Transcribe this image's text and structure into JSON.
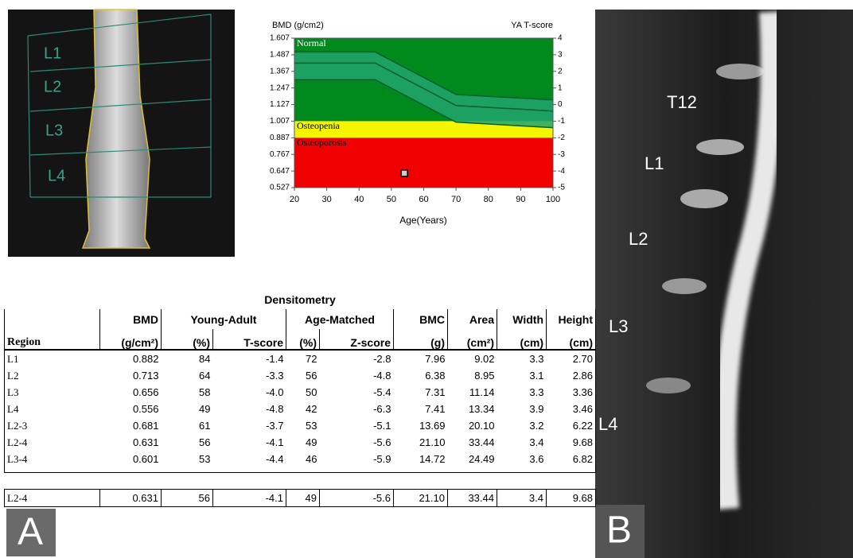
{
  "chart_data": {
    "type": "line",
    "y_label": "BMD (g/cm2)",
    "y2_label": "YA T-score",
    "x_label": "Age(Years)",
    "x": [
      20,
      45,
      70,
      100
    ],
    "series": [
      {
        "color": "#0b5e2c",
        "values": [
          1.507,
          1.507,
          1.2,
          1.16
        ]
      },
      {
        "color": "#0b5e2c",
        "values": [
          1.427,
          1.427,
          1.12,
          1.08
        ]
      },
      {
        "color": "#0b5e2c",
        "values": [
          1.307,
          1.307,
          1.0,
          0.96
        ]
      }
    ],
    "band_color": "#22a56e",
    "zones": [
      {
        "label": "Normal",
        "from": 1.007,
        "to": 1.607,
        "color": "#008a1e"
      },
      {
        "label": "Osteopenia",
        "from": 0.887,
        "to": 1.007,
        "color": "#f5f500"
      },
      {
        "label": "Osteoporosis",
        "from": 0.527,
        "to": 0.887,
        "color": "#f00000"
      }
    ],
    "marker": {
      "x": 54,
      "y": 0.631
    },
    "xlim": [
      20,
      100
    ],
    "xticks": [
      20,
      30,
      40,
      50,
      60,
      70,
      80,
      90,
      100
    ],
    "ylim": [
      0.527,
      1.607
    ],
    "yticks": [
      0.527,
      0.647,
      0.767,
      0.887,
      1.007,
      1.127,
      1.247,
      1.367,
      1.487,
      1.607
    ],
    "y2lim": [
      -5,
      4
    ],
    "y2ticks": [
      -5,
      -4,
      -3,
      -2,
      -1,
      0,
      1,
      2,
      3,
      4
    ]
  },
  "dxa": {
    "labels": [
      "L1",
      "L2",
      "L3",
      "L4"
    ]
  },
  "mri": {
    "labels": [
      "T12",
      "L1",
      "L2",
      "L3",
      "L4"
    ]
  },
  "panels": [
    "A",
    "B"
  ],
  "table": {
    "title": "Densitometry",
    "header_top": [
      "BMD",
      "Young-Adult",
      "Age-Matched",
      "BMC",
      "Area",
      "Width",
      "Height"
    ],
    "header_bottom": [
      "Region",
      "(g/cm²)",
      "(%)",
      "T-score",
      "(%)",
      "Z-score",
      "(g)",
      "(cm²)",
      "(cm)",
      "(cm)"
    ],
    "rows": [
      [
        "L1",
        "0.882",
        "84",
        "-1.4",
        "72",
        "-2.8",
        "7.96",
        "9.02",
        "3.3",
        "2.70"
      ],
      [
        "L2",
        "0.713",
        "64",
        "-3.3",
        "56",
        "-4.8",
        "6.38",
        "8.95",
        "3.1",
        "2.86"
      ],
      [
        "L3",
        "0.656",
        "58",
        "-4.0",
        "50",
        "-5.4",
        "7.31",
        "11.14",
        "3.3",
        "3.36"
      ],
      [
        "L4",
        "0.556",
        "49",
        "-4.8",
        "42",
        "-6.3",
        "7.41",
        "13.34",
        "3.9",
        "3.46"
      ],
      [
        "L2-3",
        "0.681",
        "61",
        "-3.7",
        "53",
        "-5.1",
        "13.69",
        "20.10",
        "3.2",
        "6.22"
      ],
      [
        "L2-4",
        "0.631",
        "56",
        "-4.1",
        "49",
        "-5.6",
        "21.10",
        "33.44",
        "3.4",
        "9.68"
      ],
      [
        "L3-4",
        "0.601",
        "53",
        "-4.4",
        "46",
        "-5.9",
        "14.72",
        "24.49",
        "3.6",
        "6.82"
      ]
    ],
    "total": [
      "L2-4",
      "0.631",
      "56",
      "-4.1",
      "49",
      "-5.6",
      "21.10",
      "33.44",
      "3.4",
      "9.68"
    ]
  }
}
